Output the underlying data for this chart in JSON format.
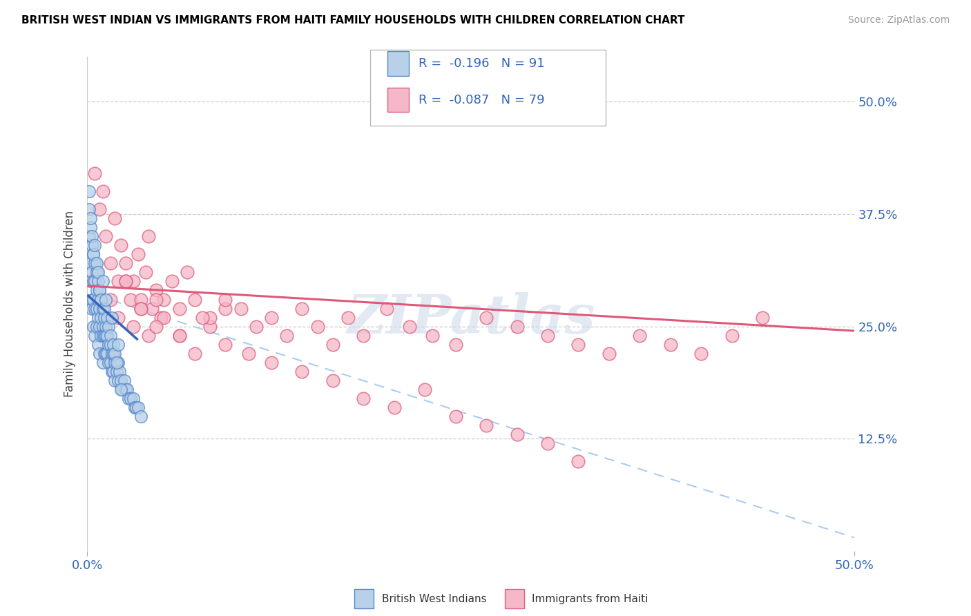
{
  "title": "BRITISH WEST INDIAN VS IMMIGRANTS FROM HAITI FAMILY HOUSEHOLDS WITH CHILDREN CORRELATION CHART",
  "source": "Source: ZipAtlas.com",
  "ylabel": "Family Households with Children",
  "ytick_vals": [
    0.125,
    0.25,
    0.375,
    0.5
  ],
  "ytick_labels": [
    "12.5%",
    "25.0%",
    "37.5%",
    "50.0%"
  ],
  "xlim": [
    0.0,
    0.5
  ],
  "ylim": [
    0.0,
    0.55
  ],
  "color_blue_fill": "#b8d0e8",
  "color_blue_edge": "#5588cc",
  "color_pink_fill": "#f4b8c8",
  "color_pink_edge": "#e06080",
  "color_blue_line": "#3366bb",
  "color_pink_line": "#e05878",
  "color_dashed": "#aaccee",
  "watermark": "ZIPatlas",
  "bottom_legend_blue": "British West Indians",
  "bottom_legend_pink": "Immigrants from Haiti",
  "bwi_x": [
    0.001,
    0.001,
    0.002,
    0.002,
    0.002,
    0.003,
    0.003,
    0.003,
    0.003,
    0.004,
    0.004,
    0.004,
    0.004,
    0.005,
    0.005,
    0.005,
    0.005,
    0.006,
    0.006,
    0.006,
    0.006,
    0.007,
    0.007,
    0.007,
    0.007,
    0.008,
    0.008,
    0.008,
    0.008,
    0.009,
    0.009,
    0.009,
    0.01,
    0.01,
    0.01,
    0.01,
    0.011,
    0.011,
    0.011,
    0.012,
    0.012,
    0.012,
    0.013,
    0.013,
    0.014,
    0.014,
    0.015,
    0.015,
    0.016,
    0.016,
    0.017,
    0.017,
    0.018,
    0.018,
    0.019,
    0.02,
    0.02,
    0.021,
    0.022,
    0.023,
    0.024,
    0.025,
    0.026,
    0.027,
    0.028,
    0.03,
    0.031,
    0.032,
    0.033,
    0.035,
    0.001,
    0.002,
    0.003,
    0.004,
    0.005,
    0.006,
    0.007,
    0.008,
    0.009,
    0.01,
    0.011,
    0.012,
    0.013,
    0.014,
    0.015,
    0.016,
    0.017,
    0.018,
    0.019,
    0.02,
    0.022
  ],
  "bwi_y": [
    0.38,
    0.35,
    0.36,
    0.32,
    0.3,
    0.34,
    0.31,
    0.28,
    0.27,
    0.33,
    0.3,
    0.28,
    0.25,
    0.32,
    0.3,
    0.27,
    0.24,
    0.31,
    0.29,
    0.27,
    0.25,
    0.3,
    0.28,
    0.26,
    0.23,
    0.29,
    0.27,
    0.25,
    0.22,
    0.28,
    0.26,
    0.24,
    0.27,
    0.25,
    0.24,
    0.21,
    0.26,
    0.24,
    0.22,
    0.25,
    0.24,
    0.22,
    0.24,
    0.22,
    0.23,
    0.21,
    0.23,
    0.21,
    0.22,
    0.2,
    0.22,
    0.2,
    0.21,
    0.19,
    0.2,
    0.21,
    0.19,
    0.2,
    0.19,
    0.18,
    0.19,
    0.18,
    0.18,
    0.17,
    0.17,
    0.17,
    0.16,
    0.16,
    0.16,
    0.15,
    0.4,
    0.37,
    0.35,
    0.33,
    0.34,
    0.32,
    0.31,
    0.29,
    0.28,
    0.3,
    0.27,
    0.28,
    0.26,
    0.25,
    0.24,
    0.26,
    0.23,
    0.22,
    0.21,
    0.23,
    0.18
  ],
  "haiti_x": [
    0.005,
    0.008,
    0.01,
    0.012,
    0.015,
    0.018,
    0.02,
    0.022,
    0.025,
    0.028,
    0.03,
    0.033,
    0.035,
    0.038,
    0.04,
    0.042,
    0.045,
    0.048,
    0.05,
    0.055,
    0.06,
    0.065,
    0.07,
    0.08,
    0.09,
    0.01,
    0.015,
    0.02,
    0.025,
    0.03,
    0.035,
    0.04,
    0.045,
    0.05,
    0.06,
    0.07,
    0.08,
    0.09,
    0.1,
    0.11,
    0.12,
    0.13,
    0.14,
    0.15,
    0.16,
    0.17,
    0.18,
    0.195,
    0.21,
    0.225,
    0.24,
    0.26,
    0.28,
    0.3,
    0.32,
    0.34,
    0.36,
    0.38,
    0.4,
    0.42,
    0.44,
    0.025,
    0.035,
    0.045,
    0.06,
    0.075,
    0.09,
    0.105,
    0.12,
    0.14,
    0.16,
    0.18,
    0.2,
    0.22,
    0.24,
    0.26,
    0.28,
    0.3,
    0.32
  ],
  "haiti_y": [
    0.42,
    0.38,
    0.4,
    0.35,
    0.32,
    0.37,
    0.3,
    0.34,
    0.32,
    0.28,
    0.3,
    0.33,
    0.28,
    0.31,
    0.35,
    0.27,
    0.29,
    0.26,
    0.28,
    0.3,
    0.27,
    0.31,
    0.28,
    0.25,
    0.27,
    0.25,
    0.28,
    0.26,
    0.3,
    0.25,
    0.27,
    0.24,
    0.28,
    0.26,
    0.24,
    0.22,
    0.26,
    0.28,
    0.27,
    0.25,
    0.26,
    0.24,
    0.27,
    0.25,
    0.23,
    0.26,
    0.24,
    0.27,
    0.25,
    0.24,
    0.23,
    0.26,
    0.25,
    0.24,
    0.23,
    0.22,
    0.24,
    0.23,
    0.22,
    0.24,
    0.26,
    0.3,
    0.27,
    0.25,
    0.24,
    0.26,
    0.23,
    0.22,
    0.21,
    0.2,
    0.19,
    0.17,
    0.16,
    0.18,
    0.15,
    0.14,
    0.13,
    0.12,
    0.1
  ],
  "bwi_line_x": [
    0.0,
    0.033
  ],
  "bwi_line_y": [
    0.285,
    0.235
  ],
  "haiti_line_x": [
    0.0,
    0.5
  ],
  "haiti_line_y": [
    0.295,
    0.245
  ],
  "dashed_line_x": [
    0.005,
    0.5
  ],
  "dashed_line_y": [
    0.285,
    0.015
  ]
}
